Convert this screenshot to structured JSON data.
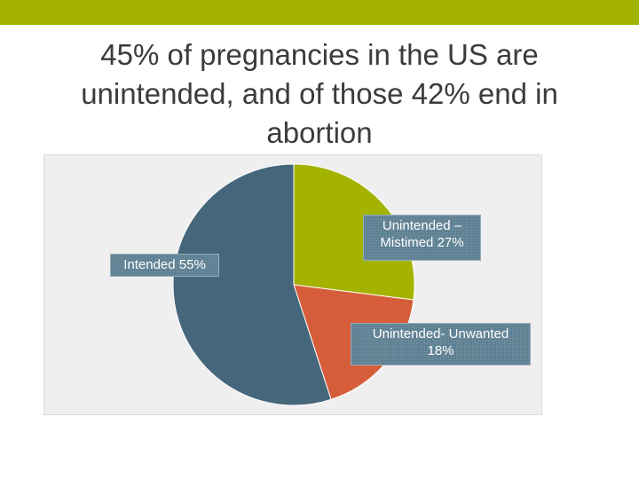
{
  "slide": {
    "title_lines": [
      "45% of pregnancies in the US are",
      "unintended, and of those 42% end in",
      "abortion"
    ],
    "colors": {
      "top_bar": "#a4b300",
      "label_bg": "#5c7f92"
    }
  },
  "chart_data": {
    "type": "pie",
    "title": "",
    "unit": "%",
    "start_angle_deg": 0,
    "direction": "clockwise",
    "slices": [
      {
        "category": "Unintended – Mistimed",
        "value": 27,
        "color": "#a4b300",
        "label_lines": [
          "Unintended –",
          "Mistimed 27%"
        ]
      },
      {
        "category": "Unintended- Unwanted",
        "value": 18,
        "color": "#d65d39",
        "label_lines": [
          "Unintended- Unwanted",
          "18%"
        ]
      },
      {
        "category": "Intended",
        "value": 55,
        "color": "#46667b",
        "label_lines": [
          "Intended 55%"
        ]
      }
    ]
  }
}
